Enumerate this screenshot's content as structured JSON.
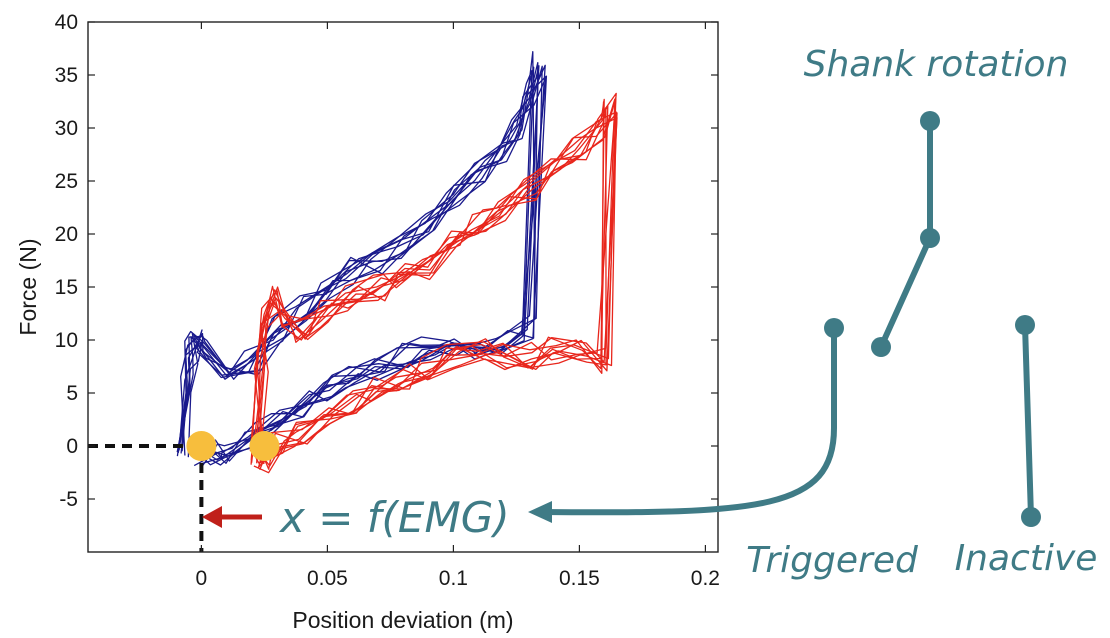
{
  "chart_data": {
    "type": "line",
    "title": "",
    "xlabel": "Position deviation (m)",
    "ylabel": "Force (N)",
    "xlim": [
      -0.045,
      0.205
    ],
    "ylim": [
      -10,
      40
    ],
    "x_ticks": [
      0,
      0.05,
      0.1,
      0.15,
      0.2
    ],
    "x_tick_labels": [
      "0",
      "0.05",
      "0.1",
      "0.15",
      "0.2"
    ],
    "y_ticks": [
      -5,
      0,
      5,
      10,
      15,
      20,
      25,
      30,
      35,
      40
    ],
    "y_tick_labels": [
      "-5",
      "0",
      "5",
      "10",
      "15",
      "20",
      "25",
      "30",
      "35",
      "40"
    ],
    "grid": false,
    "series": [
      {
        "name": "blue-trials",
        "color": "#1a1a8c",
        "x": [
          -0.008,
          -0.006,
          -0.004,
          -0.002,
          0.0,
          0.01,
          0.02,
          0.03,
          0.04,
          0.05,
          0.06,
          0.07,
          0.08,
          0.09,
          0.1,
          0.11,
          0.12,
          0.125,
          0.13,
          0.134,
          0.13,
          0.12,
          0.11,
          0.1,
          0.09,
          0.08,
          0.07,
          0.06,
          0.05,
          0.04,
          0.03,
          0.02,
          0.01,
          0.005,
          0.0
        ],
        "y": [
          0,
          6,
          9,
          10,
          9,
          7,
          8,
          11,
          13,
          15,
          16.5,
          17.5,
          19,
          21,
          24,
          26,
          28,
          30,
          33,
          36,
          11,
          10,
          9.5,
          9,
          9,
          8.5,
          7.5,
          6.5,
          5.5,
          4,
          2.5,
          1,
          -0.5,
          -0.5,
          -1
        ]
      },
      {
        "name": "red-trials",
        "color": "#e8261c",
        "x": [
          0.022,
          0.024,
          0.026,
          0.03,
          0.035,
          0.04,
          0.05,
          0.06,
          0.07,
          0.08,
          0.09,
          0.1,
          0.11,
          0.12,
          0.13,
          0.14,
          0.15,
          0.158,
          0.162,
          0.16,
          0.15,
          0.14,
          0.13,
          0.12,
          0.11,
          0.1,
          0.09,
          0.08,
          0.07,
          0.06,
          0.05,
          0.04,
          0.03,
          0.025,
          0.023
        ],
        "y": [
          -1,
          8,
          12,
          14,
          12,
          11,
          12.5,
          14,
          15,
          16,
          17,
          19,
          21,
          22.5,
          24,
          26,
          28,
          30,
          32,
          8,
          9,
          9,
          8.5,
          8.5,
          9,
          8.5,
          7.5,
          6.5,
          5.5,
          4,
          2.5,
          1,
          0,
          -1.5,
          -1
        ]
      }
    ],
    "markers": [
      {
        "name": "blue-start",
        "x": 0.0,
        "y": 0.0,
        "color": "#f7be3d"
      },
      {
        "name": "red-start",
        "x": 0.025,
        "y": 0.0,
        "color": "#f7be3d"
      }
    ],
    "annotations": {
      "formula": "x = f(EMG)",
      "dashed_guides": {
        "x": 0.0,
        "y": 0.0
      }
    }
  },
  "diagram": {
    "labels": {
      "shank_rotation": "Shank rotation",
      "triggered": "Triggered",
      "inactive": "Inactive"
    },
    "color": "#3f7b86",
    "arrow_color": "#c0201a"
  }
}
